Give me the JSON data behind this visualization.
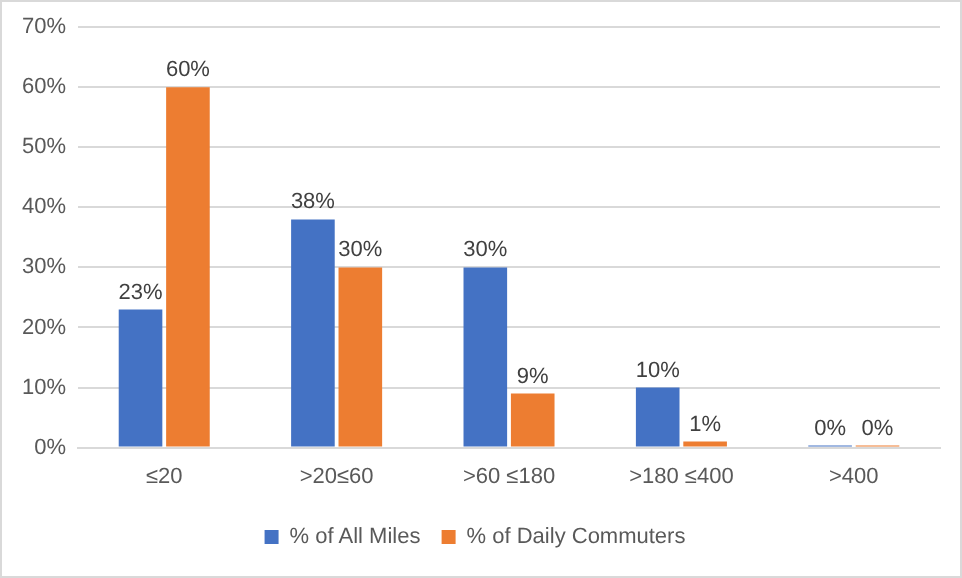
{
  "chart_data": {
    "type": "bar",
    "categories": [
      "≤20",
      ">20≤60",
      ">60 ≤180",
      ">180 ≤400",
      ">400"
    ],
    "series": [
      {
        "name": "% of All Miles",
        "color": "#4472c4",
        "values": [
          23,
          38,
          30,
          10,
          0
        ],
        "value_labels": [
          "23%",
          "38%",
          "30%",
          "10%",
          "0%"
        ]
      },
      {
        "name": "% of Daily Commuters",
        "color": "#ed7d31",
        "values": [
          60,
          30,
          9,
          1,
          0
        ],
        "value_labels": [
          "60%",
          "30%",
          "9%",
          "1%",
          "0%"
        ]
      }
    ],
    "ylim": [
      0,
      70
    ],
    "yticks": [
      {
        "value": 0,
        "label": "0%"
      },
      {
        "value": 10,
        "label": "10%"
      },
      {
        "value": 20,
        "label": "20%"
      },
      {
        "value": 30,
        "label": "30%"
      },
      {
        "value": 40,
        "label": "40%"
      },
      {
        "value": 50,
        "label": "50%"
      },
      {
        "value": 60,
        "label": "60%"
      },
      {
        "value": 70,
        "label": "70%"
      }
    ],
    "grid": "y",
    "legend": "bottom"
  }
}
